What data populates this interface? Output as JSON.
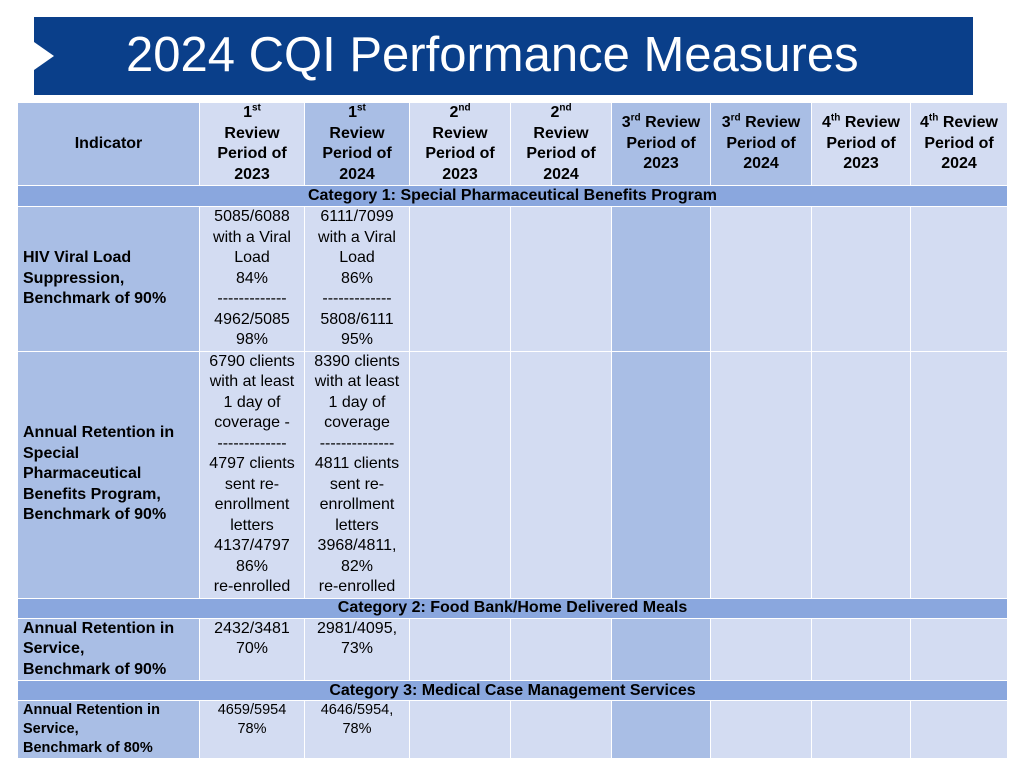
{
  "title": "2024 CQI Performance Measures",
  "header": {
    "indicator": "Indicator",
    "columns": [
      {
        "num": "1",
        "sup": "st",
        "lines": [
          "Review",
          "Period of",
          "2023"
        ]
      },
      {
        "num": "1",
        "sup": "st",
        "lines": [
          "Review",
          "Period of",
          "2024"
        ]
      },
      {
        "num": "2",
        "sup": "nd",
        "lines": [
          "Review",
          "Period of",
          "2023"
        ]
      },
      {
        "num": "2",
        "sup": "nd",
        "lines": [
          "Review",
          "Period of",
          "2024"
        ]
      },
      {
        "num": "3",
        "sup": "rd",
        "first": "Review",
        "lines": [
          "Period of",
          "2023"
        ]
      },
      {
        "num": "3",
        "sup": "rd",
        "first": "Review",
        "lines": [
          "Period of",
          "2024"
        ]
      },
      {
        "num": "4",
        "sup": "th",
        "first": "Review",
        "lines": [
          "Period of",
          "2023"
        ]
      },
      {
        "num": "4",
        "sup": "th",
        "first": "Review",
        "lines": [
          "Period of",
          "2024"
        ]
      }
    ]
  },
  "categories": [
    "Category 1:  Special Pharmaceutical Benefits Program",
    "Category 2:  Food Bank/Home Delivered Meals",
    "Category 3:  Medical Case Management Services"
  ],
  "rows": [
    {
      "indicator": [
        "HIV Viral Load",
        "Suppression,",
        "Benchmark of 90%"
      ],
      "c2023": [
        "5085/6088",
        "with a Viral",
        "Load",
        "84%",
        "-------------",
        "4962/5085",
        "98%"
      ],
      "c2024": [
        "6111/7099",
        "with a Viral",
        "Load",
        "86%",
        "-------------",
        "5808/6111",
        "95%"
      ]
    },
    {
      "indicator": [
        "Annual Retention in",
        "Special",
        "Pharmaceutical",
        "Benefits Program,",
        "Benchmark of 90%"
      ],
      "c2023": [
        "6790 clients",
        "with at least",
        "1 day of",
        "coverage  -",
        "-------------",
        "4797 clients",
        "sent re-",
        "enrollment",
        "letters",
        "4137/4797",
        "86%",
        "re-enrolled"
      ],
      "c2024": [
        "8390 clients",
        "with at least",
        "1 day of",
        "coverage",
        "--------------",
        "4811 clients",
        "sent re-",
        "enrollment",
        "letters",
        "3968/4811,",
        "82%",
        "re-enrolled"
      ]
    },
    {
      "indicator": [
        "Annual Retention in",
        "Service,",
        "Benchmark of 90%"
      ],
      "c2023": [
        "2432/3481",
        "70%"
      ],
      "c2024": [
        "2981/4095,",
        "73%"
      ]
    },
    {
      "indicator": [
        "Annual Retention in",
        "Service,",
        "Benchmark of 80%"
      ],
      "c2023": [
        "4659/5954",
        "78%"
      ],
      "c2024": [
        "4646/5954,",
        "78%"
      ]
    }
  ]
}
